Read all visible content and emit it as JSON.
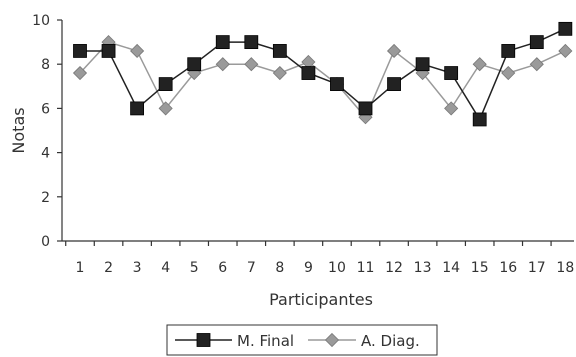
{
  "chart_data": {
    "type": "line",
    "xlabel": "Participantes",
    "ylabel": "Notas",
    "ylim": [
      0,
      10
    ],
    "yticks": [
      0,
      2,
      4,
      6,
      8,
      10
    ],
    "x": [
      1,
      2,
      3,
      4,
      5,
      6,
      7,
      8,
      9,
      10,
      11,
      12,
      13,
      14,
      15,
      16,
      17,
      18
    ],
    "series": [
      {
        "name": "M. Final",
        "marker": "square",
        "color": "#222222",
        "values": [
          8.6,
          8.6,
          6.0,
          7.1,
          8.0,
          9.0,
          9.0,
          8.6,
          7.6,
          7.1,
          6.0,
          7.1,
          8.0,
          7.6,
          5.5,
          8.6,
          9.0,
          9.6
        ]
      },
      {
        "name": "A. Diag.",
        "marker": "diamond",
        "color": "#9a9a9a",
        "values": [
          7.6,
          9.0,
          8.6,
          6.0,
          7.6,
          8.0,
          8.0,
          7.6,
          8.1,
          7.1,
          5.6,
          8.6,
          7.6,
          6.0,
          8.0,
          7.6,
          8.0,
          8.6
        ]
      }
    ]
  }
}
